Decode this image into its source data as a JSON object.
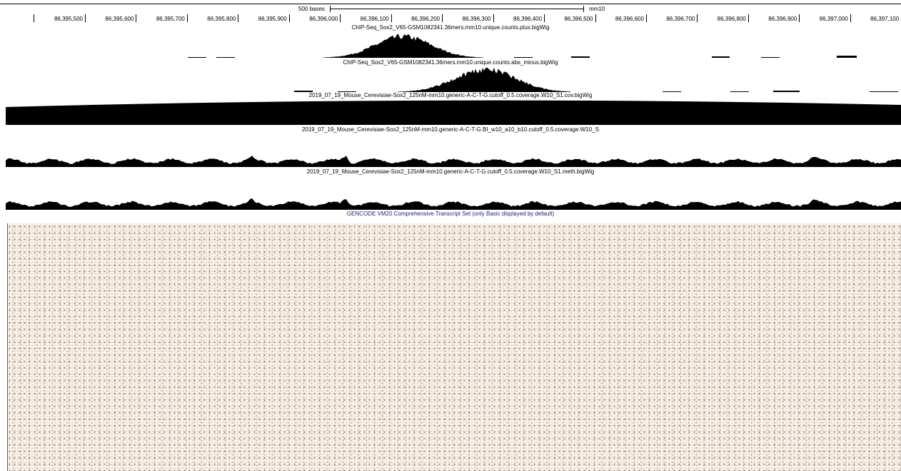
{
  "scale": {
    "bases_label": "500 bases",
    "assembly": "mm10"
  },
  "ruler": {
    "ticks": [
      "86,395,500",
      "86,395,600",
      "86,395,700",
      "86,395,800",
      "86,395,900",
      "86,396,000",
      "86,396,100",
      "86,396,200",
      "86,396,300",
      "86,396,400",
      "86,396,500",
      "86,396,600",
      "86,396,700",
      "86,396,800",
      "86,396,900",
      "86,397,000",
      "86,397,100"
    ]
  },
  "tracks": {
    "plus": {
      "title": "ChIP-Seq_Sox2_V65-GSM1082341.36mers.mm10.unique.counts.plus.bigWig"
    },
    "minus": {
      "title": "ChIP-Seq_Sox2_V65-GSM1082341.36mers.mm10.unique.counts.abs_minus.bigWig"
    },
    "cov": {
      "title": "2019_07_19_Mouse_Cerevisiae-Sox2_125nM-mm10.generic-A-C-T-G.cutoff_0.5.coverage.W10_S1.cov.bigWig"
    },
    "bi": {
      "title": "2019_07_19_Mouse_Cerevisiae-Sox2_125nM-mm10.generic-A-C-T-G.BI_w10_a10_b10.cutoff_0.5.coverage.W10_S"
    },
    "meth": {
      "title": "2019_07_19_Mouse_Cerevisiae-Sox2_125nM-mm10.generic-A-C-T-G.cutoff_0.5.coverage.W10_S1.meth.bigWig"
    },
    "gencode": {
      "title": "GENCODE VM20 Comprehensive Transcript Set (only Basic displayed by default)"
    }
  },
  "colors": {
    "track_fill": "#000000",
    "gencode_title": "#1a237e",
    "gencode_bg": "#fbf1e4"
  }
}
